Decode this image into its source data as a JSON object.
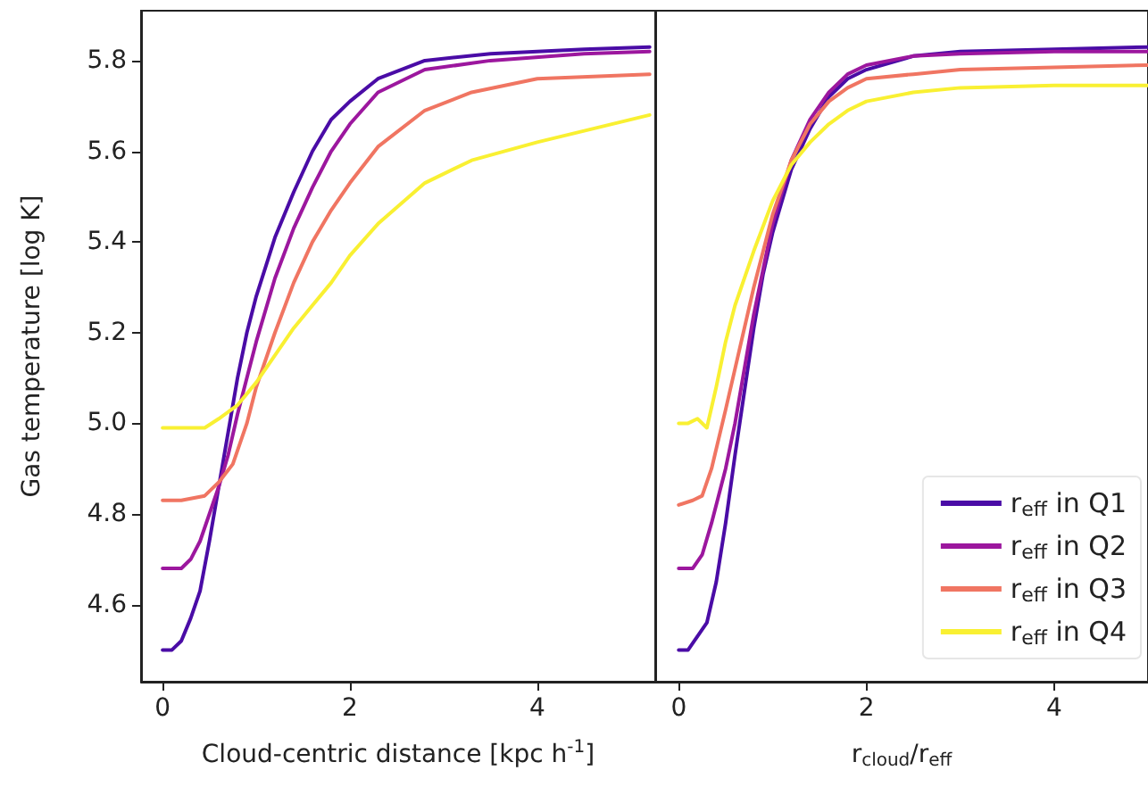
{
  "chart_data": [
    {
      "type": "line",
      "xlabel": "Cloud-centric distance [kpc h$^{-1}$]",
      "ylabel": "Gas temperature [log K]",
      "xlim": [
        -0.23,
        5.26
      ],
      "xticks": [
        0,
        2,
        4
      ],
      "ylim": [
        4.43,
        5.91
      ],
      "yticks": [
        4.6,
        4.8,
        {
          "value": 5,
          "label": "5.0"
        },
        5.2,
        5.4,
        5.6,
        5.8
      ],
      "grid": false,
      "legend": false,
      "marker": "none",
      "line_style": "solid",
      "series": [
        {
          "color": "#4a0ca6",
          "x": [
            0,
            0.1,
            0.2,
            0.3,
            0.4,
            0.5,
            0.6,
            0.7,
            0.8,
            0.9,
            1.0,
            1.2,
            1.4,
            1.6,
            1.8,
            2.0,
            2.3,
            2.8,
            3.5,
            4.5,
            5.2
          ],
          "values": [
            4.5,
            4.5,
            4.52,
            4.57,
            4.63,
            4.74,
            4.86,
            4.98,
            5.1,
            5.2,
            5.28,
            5.41,
            5.51,
            5.6,
            5.67,
            5.71,
            5.76,
            5.8,
            5.815,
            5.825,
            5.83
          ]
        },
        {
          "color": "#9c179e",
          "x": [
            0,
            0.2,
            0.3,
            0.4,
            0.5,
            0.6,
            0.7,
            0.8,
            0.9,
            1.0,
            1.2,
            1.4,
            1.6,
            1.8,
            2.0,
            2.3,
            2.8,
            3.5,
            4.5,
            5.2
          ],
          "values": [
            4.68,
            4.68,
            4.7,
            4.74,
            4.8,
            4.86,
            4.93,
            5.02,
            5.1,
            5.18,
            5.32,
            5.43,
            5.52,
            5.6,
            5.66,
            5.73,
            5.78,
            5.8,
            5.815,
            5.82
          ]
        },
        {
          "color": "#f07562",
          "x": [
            0,
            0.2,
            0.45,
            0.6,
            0.75,
            0.9,
            1.0,
            1.2,
            1.4,
            1.6,
            1.8,
            2.0,
            2.3,
            2.8,
            3.3,
            4.0,
            5.2
          ],
          "values": [
            4.83,
            4.83,
            4.84,
            4.87,
            4.91,
            5.0,
            5.08,
            5.2,
            5.31,
            5.4,
            5.47,
            5.53,
            5.61,
            5.69,
            5.73,
            5.76,
            5.77
          ]
        },
        {
          "color": "#f9f032",
          "x": [
            0,
            0.45,
            0.6,
            0.8,
            1.0,
            1.2,
            1.4,
            1.6,
            1.8,
            2.0,
            2.3,
            2.8,
            3.3,
            4.0,
            4.6,
            5.2
          ],
          "values": [
            4.99,
            4.99,
            5.01,
            5.04,
            5.09,
            5.15,
            5.21,
            5.26,
            5.31,
            5.37,
            5.44,
            5.53,
            5.58,
            5.62,
            5.65,
            5.68
          ]
        }
      ]
    },
    {
      "type": "line",
      "xlabel": "r$_{cloud}$/r$_{eff}$",
      "xlim": [
        -0.25,
        5.0
      ],
      "xticks": [
        0,
        2,
        4
      ],
      "ylim": [
        4.43,
        5.91
      ],
      "tick_labels": "x",
      "grid": false,
      "legend": "bottom right",
      "marker": "none",
      "line_style": "solid",
      "series": [
        {
          "name": "r$_{eff}$ in Q1",
          "color": "#4a0ca6",
          "x": [
            0,
            0.1,
            0.3,
            0.4,
            0.5,
            0.6,
            0.7,
            0.8,
            0.9,
            1.0,
            1.2,
            1.4,
            1.6,
            1.8,
            2.0,
            2.5,
            3.0,
            4.0,
            5.0
          ],
          "values": [
            4.5,
            4.5,
            4.56,
            4.65,
            4.78,
            4.93,
            5.07,
            5.21,
            5.33,
            5.42,
            5.56,
            5.65,
            5.72,
            5.76,
            5.78,
            5.81,
            5.82,
            5.825,
            5.83
          ]
        },
        {
          "name": "r$_{eff}$ in Q2",
          "color": "#9c179e",
          "x": [
            0,
            0.15,
            0.25,
            0.35,
            0.5,
            0.6,
            0.7,
            0.8,
            1.0,
            1.2,
            1.4,
            1.6,
            1.8,
            2.0,
            2.5,
            3.0,
            4.0,
            5.0
          ],
          "values": [
            4.68,
            4.68,
            4.71,
            4.78,
            4.9,
            5.0,
            5.12,
            5.24,
            5.44,
            5.58,
            5.67,
            5.73,
            5.77,
            5.79,
            5.81,
            5.815,
            5.82,
            5.82
          ]
        },
        {
          "name": "r$_{eff}$ in Q3",
          "color": "#f07562",
          "x": [
            0,
            0.15,
            0.25,
            0.35,
            0.5,
            0.6,
            0.8,
            1.0,
            1.2,
            1.4,
            1.6,
            1.8,
            2.0,
            2.5,
            3.0,
            4.0,
            5.0
          ],
          "values": [
            4.82,
            4.83,
            4.84,
            4.9,
            5.03,
            5.12,
            5.3,
            5.46,
            5.58,
            5.66,
            5.71,
            5.74,
            5.76,
            5.77,
            5.78,
            5.785,
            5.79
          ]
        },
        {
          "name": "r$_{eff}$ in Q4",
          "color": "#f9f032",
          "x": [
            0,
            0.1,
            0.2,
            0.3,
            0.4,
            0.5,
            0.6,
            0.8,
            1.0,
            1.2,
            1.4,
            1.6,
            1.8,
            2.0,
            2.5,
            3.0,
            4.0,
            5.0
          ],
          "values": [
            5.0,
            5.0,
            5.01,
            4.99,
            5.08,
            5.18,
            5.26,
            5.38,
            5.49,
            5.57,
            5.62,
            5.66,
            5.69,
            5.71,
            5.73,
            5.74,
            5.745,
            5.745
          ]
        }
      ]
    }
  ]
}
